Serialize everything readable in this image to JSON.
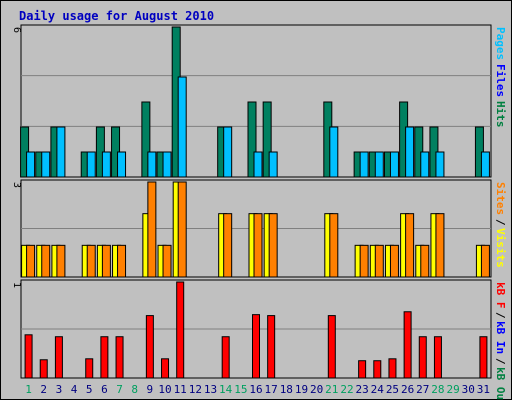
{
  "chart_data": {
    "type": "bar",
    "title": "Daily usage for August 2010",
    "categories": [
      "1",
      "2",
      "3",
      "4",
      "5",
      "6",
      "7",
      "8",
      "9",
      "10",
      "11",
      "12",
      "13",
      "14",
      "15",
      "16",
      "17",
      "18",
      "19",
      "20",
      "21",
      "22",
      "23",
      "24",
      "25",
      "26",
      "27",
      "28",
      "29",
      "30",
      "31"
    ],
    "weekend_days": [
      1,
      7,
      8,
      14,
      15,
      21,
      22,
      28,
      29
    ],
    "panels": [
      {
        "name": "hits-files-pages",
        "ymax": 6,
        "ymax_label": "6",
        "legend": [
          "Pages",
          "Files",
          "Hits"
        ],
        "legend_colors": [
          "#00c0ff",
          "#0000ff",
          "#008040"
        ],
        "series": [
          {
            "name": "Hits",
            "color": "#008060",
            "values": [
              2,
              1,
              2,
              0,
              1,
              2,
              2,
              0,
              3,
              1,
              6,
              0,
              0,
              2,
              0,
              3,
              3,
              0,
              0,
              0,
              3,
              0,
              1,
              1,
              1,
              3,
              2,
              2,
              0,
              0,
              2
            ]
          },
          {
            "name": "Files",
            "color": "#0000ff",
            "values": [
              1,
              1,
              2,
              0,
              1,
              1,
              1,
              0,
              1,
              1,
              4,
              0,
              0,
              2,
              0,
              1,
              1,
              0,
              0,
              0,
              2,
              0,
              1,
              1,
              1,
              2,
              1,
              1,
              0,
              0,
              1
            ]
          },
          {
            "name": "Pages",
            "color": "#00c0ff",
            "values": [
              1,
              1,
              2,
              0,
              1,
              1,
              1,
              0,
              1,
              1,
              4,
              0,
              0,
              2,
              0,
              1,
              1,
              0,
              0,
              0,
              2,
              0,
              1,
              1,
              1,
              2,
              1,
              1,
              0,
              0,
              1
            ]
          }
        ]
      },
      {
        "name": "visits-sites",
        "ymax": 3,
        "ymax_label": "3",
        "legend": [
          "Sites",
          "/",
          "Visits"
        ],
        "legend_colors": [
          "#ff8000",
          "#000000",
          "#ffff00"
        ],
        "series": [
          {
            "name": "Visits",
            "color": "#ffff00",
            "values": [
              1,
              1,
              1,
              0,
              1,
              1,
              1,
              0,
              2,
              1,
              3,
              0,
              0,
              2,
              0,
              2,
              2,
              0,
              0,
              0,
              2,
              0,
              1,
              1,
              1,
              2,
              1,
              2,
              0,
              0,
              1
            ]
          },
          {
            "name": "Sites",
            "color": "#ff8000",
            "values": [
              1,
              1,
              1,
              0,
              1,
              1,
              1,
              0,
              3,
              1,
              3,
              0,
              0,
              2,
              0,
              2,
              2,
              0,
              0,
              0,
              2,
              0,
              1,
              1,
              1,
              2,
              1,
              2,
              0,
              0,
              1
            ]
          }
        ]
      },
      {
        "name": "kbytes",
        "ymax": 1,
        "ymax_label": "1",
        "legend": [
          "kB F",
          "/",
          "kB In",
          "/",
          "kB Out"
        ],
        "legend_colors": [
          "#ff0000",
          "#000000",
          "#0000ff",
          "#000000",
          "#008040"
        ],
        "series": [
          {
            "name": "kB F",
            "color": "#ff0000",
            "values": [
              0.45,
              0.19,
              0.43,
              0,
              0.2,
              0.43,
              0.43,
              0,
              0.65,
              0.2,
              1.0,
              0,
              0,
              0.43,
              0,
              0.66,
              0.65,
              0,
              0,
              0,
              0.65,
              0,
              0.18,
              0.18,
              0.2,
              0.69,
              0.43,
              0.43,
              0,
              0,
              0.43
            ]
          }
        ]
      }
    ]
  }
}
